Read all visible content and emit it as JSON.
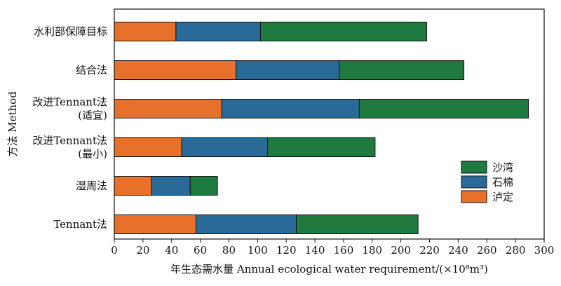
{
  "colors": {
    "luding": "#e8702a",
    "shimian": "#2a6a99",
    "shawan": "#1e7a3e",
    "border": "#111111"
  },
  "chart_data": {
    "type": "bar",
    "orientation": "horizontal",
    "stacked": true,
    "categories": [
      [
        "水利部保障目标"
      ],
      [
        "结合法"
      ],
      [
        "改进Tennant法",
        "(适宜)"
      ],
      [
        "改进Tennant法",
        "(最小)"
      ],
      [
        "湿周法"
      ],
      [
        "Tennant法"
      ]
    ],
    "series": [
      {
        "name": "泸定",
        "color": "#e8702a",
        "values": [
          43,
          85,
          75,
          47,
          26,
          57
        ]
      },
      {
        "name": "石棉",
        "color": "#2a6a99",
        "values": [
          59,
          72,
          96,
          60,
          27,
          70
        ]
      },
      {
        "name": "沙湾",
        "color": "#1e7a3e",
        "values": [
          116,
          87,
          118,
          75,
          19,
          85
        ]
      }
    ],
    "xlabel": "年生态需水量 Annual ecological water requirement/(×10⁸m³)",
    "ylabel": "方法 Method",
    "xlim": [
      0,
      300
    ],
    "xticks": [
      0,
      20,
      40,
      60,
      80,
      100,
      120,
      140,
      160,
      180,
      200,
      220,
      240,
      260,
      280,
      300
    ],
    "legend_position": "bottom-right",
    "legend_order": [
      "沙湾",
      "石棉",
      "泸定"
    ],
    "grid": false
  }
}
